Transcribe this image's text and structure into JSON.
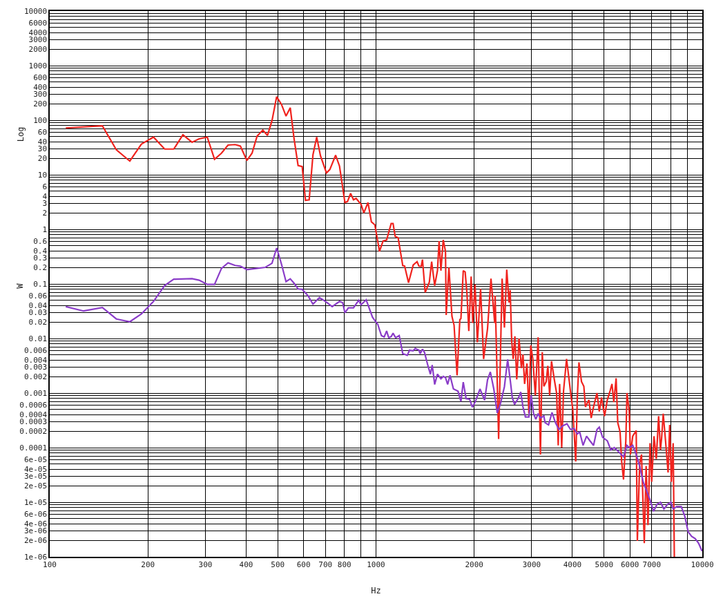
{
  "chart_data": {
    "type": "line",
    "xlabel": "Hz",
    "ylabel": "Log",
    "annotations": [
      "W"
    ],
    "log": "xy",
    "grid": true,
    "xlim": [
      100,
      10000
    ],
    "ylim": [
      1e-06,
      10000
    ],
    "xticks": [
      100,
      200,
      300,
      400,
      500,
      600,
      700,
      800,
      {
        "value": 900,
        "label": null
      },
      1000,
      2000,
      3000,
      4000,
      5000,
      6000,
      7000,
      {
        "value": 8000,
        "label": null
      },
      {
        "value": 9000,
        "label": null
      },
      10000
    ],
    "yticks": [
      1e-06,
      2e-06,
      3e-06,
      4e-06,
      {
        "value": 5e-06,
        "label": null
      },
      6e-06,
      {
        "value": 7e-06,
        "label": null
      },
      {
        "value": 8e-06,
        "label": null
      },
      {
        "value": 9e-06,
        "label": null
      },
      1e-05,
      2e-05,
      3e-05,
      4e-05,
      {
        "value": 5e-05,
        "label": null
      },
      6e-05,
      {
        "value": 7e-05,
        "label": null
      },
      {
        "value": 8e-05,
        "label": null
      },
      {
        "value": 9e-05,
        "label": null
      },
      0.0001,
      0.0002,
      0.0003,
      0.0004,
      {
        "value": 0.0005,
        "label": null
      },
      0.0006,
      {
        "value": 0.0007,
        "label": null
      },
      {
        "value": 0.0008,
        "label": null
      },
      {
        "value": 0.0009,
        "label": null
      },
      0.001,
      0.002,
      0.003,
      0.004,
      {
        "value": 0.005,
        "label": null
      },
      0.006,
      {
        "value": 0.007,
        "label": null
      },
      {
        "value": 0.008,
        "label": null
      },
      {
        "value": 0.009,
        "label": null
      },
      0.01,
      0.02,
      0.03,
      0.04,
      {
        "value": 0.05,
        "label": null
      },
      0.06,
      {
        "value": 0.07,
        "label": null
      },
      {
        "value": 0.08,
        "label": null
      },
      {
        "value": 0.09,
        "label": null
      },
      0.1,
      0.2,
      0.3,
      0.4,
      {
        "value": 0.5,
        "label": null
      },
      0.6,
      {
        "value": 0.7,
        "label": null
      },
      {
        "value": 0.8,
        "label": null
      },
      {
        "value": 0.9,
        "label": null
      },
      1,
      2,
      3,
      4,
      {
        "value": 5,
        "label": null
      },
      6,
      {
        "value": 7,
        "label": null
      },
      {
        "value": 8,
        "label": null
      },
      {
        "value": 9,
        "label": null
      },
      10,
      20,
      30,
      40,
      {
        "value": 50,
        "label": null
      },
      60,
      {
        "value": 70,
        "label": null
      },
      {
        "value": 80,
        "label": null
      },
      {
        "value": 90,
        "label": null
      },
      100,
      200,
      300,
      400,
      {
        "value": 500,
        "label": null
      },
      600,
      {
        "value": 700,
        "label": null
      },
      {
        "value": 800,
        "label": null
      },
      {
        "value": 900,
        "label": null
      },
      1000,
      2000,
      3000,
      4000,
      {
        "value": 5000,
        "label": null
      },
      6000,
      {
        "value": 7000,
        "label": null
      },
      {
        "value": 8000,
        "label": null
      },
      {
        "value": 9000,
        "label": null
      },
      10000
    ],
    "series": [
      {
        "color": "#f0231e",
        "x": [
          112,
          145,
          160,
          176,
          191,
          208,
          225,
          240,
          256,
          273,
          287,
          304,
          320,
          336,
          352,
          370,
          384,
          402,
          417,
          432,
          450,
          465,
          480,
          496,
          513,
          530,
          546,
          561,
          577,
          594,
          608,
          624,
          641,
          658,
          676,
          705,
          722,
          752,
          773,
          803,
          818,
          836,
          853,
          869,
          900,
          918,
          945,
          968,
          992,
          1025,
          1051,
          1078,
          1113,
          1128,
          1145,
          1169,
          1208,
          1224,
          1258,
          1300,
          1336,
          1354,
          1376,
          1388,
          1415,
          1457,
          1481,
          1513,
          1543,
          1561,
          1581,
          1607,
          1633,
          1641,
          1673,
          1709,
          1735,
          1772,
          1807,
          1821,
          1851,
          1876,
          1900,
          1925,
          1957,
          1979,
          2012,
          2045,
          2092,
          2137,
          2197,
          2251,
          2311,
          2318,
          2376,
          2435,
          2475,
          2516,
          2557,
          2578,
          2605,
          2633,
          2665,
          2700,
          2744,
          2790,
          2821,
          2854,
          2902,
          2942,
          2981,
          3024,
          3079,
          3140,
          3191,
          3233,
          3270,
          3324,
          3362,
          3406,
          3451,
          3519,
          3577,
          3618,
          3654,
          3708,
          3757,
          3837,
          3913,
          3957,
          4009,
          4094,
          4140,
          4188,
          4264,
          4335,
          4384,
          4493,
          4566,
          4642,
          4756,
          4834,
          4913,
          5018,
          5117,
          5218,
          5287,
          5356,
          5444,
          5507,
          5597,
          5661,
          5735,
          5830,
          5877,
          5974,
          6022,
          6121,
          6273,
          6324,
          6428,
          6513,
          6641,
          6728,
          6817,
          6918,
          6997,
          7112,
          7229,
          7348,
          7444,
          7504,
          7591,
          7716,
          7856,
          7945,
          8037,
          8142,
          8210
        ],
        "values": [
          72,
          79,
          28.7,
          17.8,
          36.5,
          49,
          29.6,
          29.6,
          54,
          39.4,
          45.5,
          49,
          19.2,
          24.9,
          35,
          35.8,
          33.5,
          18.3,
          24.9,
          51,
          65.6,
          52.6,
          98,
          269,
          196,
          119,
          169,
          45.5,
          14.8,
          14.1,
          3.4,
          3.48,
          23.3,
          49,
          22.2,
          10.8,
          12.5,
          22.8,
          14.4,
          3.1,
          3.25,
          4.55,
          3.48,
          3.69,
          2.87,
          2.01,
          3.1,
          1.37,
          1.21,
          0.394,
          0.61,
          0.64,
          1.28,
          1.28,
          0.74,
          0.7,
          0.216,
          0.212,
          0.105,
          0.222,
          0.256,
          0.212,
          0.21,
          0.28,
          0.07,
          0.108,
          0.256,
          0.0935,
          0.175,
          0.61,
          0.175,
          0.64,
          0.394,
          0.027,
          0.2,
          0.0256,
          0.0175,
          0.0021,
          0.0222,
          0.0233,
          0.175,
          0.166,
          0.067,
          0.0137,
          0.137,
          0.0192,
          0.098,
          0.0085,
          0.081,
          0.0042,
          0.0151,
          0.125,
          0.0192,
          0.0608,
          0.000144,
          0.125,
          0.0158,
          0.183,
          0.0456,
          0.077,
          0.00908,
          0.00422,
          0.011,
          0.00178,
          0.01,
          0.00287,
          0.0051,
          0.00147,
          0.00348,
          0.00042,
          0.0075,
          0.00422,
          0.00091,
          0.0105,
          7.5e-05,
          0.0056,
          0.00133,
          0.00162,
          0.00316,
          0.00091,
          0.00383,
          0.00178,
          0.001,
          0.00011,
          0.00147,
          0.0001,
          0.0011,
          0.00422,
          0.00162,
          0.00091,
          0.00051,
          5.6e-05,
          0.00083,
          0.00365,
          0.00162,
          0.00133,
          0.00056,
          0.00075,
          0.00035,
          0.00056,
          0.001,
          0.00046,
          0.00083,
          0.00038,
          0.00075,
          0.0011,
          0.00147,
          0.00068,
          0.00187,
          0.000287,
          0.000196,
          5.6e-05,
          2.6e-05,
          0.000133,
          0.001,
          0.00046,
          7.5e-05,
          0.000162,
          0.000205,
          1.96e-06,
          5.1e-05,
          7.5e-05,
          1.78e-06,
          4.6e-05,
          3.8e-06,
          0.000121,
          2.37e-05,
          0.000162,
          6.2e-05,
          0.00038,
          9.1e-05,
          0.000147,
          0.00042,
          0.000133,
          3.5e-05,
          0.000261,
          2.37e-05,
          0.000121,
          1e-06
        ]
      },
      {
        "color": "#8a3cc8",
        "x": [
          112,
          127,
          145,
          160,
          176,
          191,
          208,
          225,
          240,
          273,
          287,
          304,
          320,
          336,
          352,
          370,
          384,
          402,
          429,
          458,
          480,
          496,
          513,
          530,
          546,
          561,
          577,
          594,
          619,
          641,
          671,
          705,
          734,
          773,
          790,
          803,
          823,
          853,
          885,
          900,
          933,
          976,
          1012,
          1039,
          1059,
          1078,
          1094,
          1113,
          1128,
          1149,
          1178,
          1208,
          1247,
          1267,
          1300,
          1319,
          1354,
          1366,
          1388,
          1409,
          1444,
          1468,
          1487,
          1513,
          1543,
          1581,
          1607,
          1633,
          1658,
          1686,
          1727,
          1784,
          1821,
          1851,
          1889,
          1936,
          1974,
          2016,
          2083,
          2152,
          2197,
          2241,
          2296,
          2353,
          2412,
          2475,
          2532,
          2582,
          2616,
          2658,
          2711,
          2755,
          2777,
          2821,
          2870,
          2942,
          2990,
          3039,
          3089,
          3140,
          3191,
          3270,
          3297,
          3379,
          3463,
          3548,
          3636,
          3725,
          3848,
          3946,
          4042,
          4140,
          4208,
          4312,
          4419,
          4528,
          4642,
          4756,
          4834,
          4951,
          5117,
          5243,
          5372,
          5551,
          5735,
          5877,
          5974,
          6121,
          6273,
          6428,
          6587,
          6751,
          6918,
          7089,
          7265,
          7444,
          7628,
          7817,
          8011,
          8142,
          8343,
          8620,
          8833,
          9051,
          9275,
          9505,
          9741,
          9983
        ],
        "values": [
          0.0383,
          0.0319,
          0.0369,
          0.0228,
          0.0203,
          0.0282,
          0.0478,
          0.0935,
          0.122,
          0.125,
          0.117,
          0.098,
          0.098,
          0.192,
          0.244,
          0.218,
          0.211,
          0.183,
          0.192,
          0.201,
          0.239,
          0.455,
          0.233,
          0.11,
          0.124,
          0.103,
          0.081,
          0.0794,
          0.0607,
          0.0426,
          0.0562,
          0.0464,
          0.0383,
          0.0478,
          0.0455,
          0.0296,
          0.0365,
          0.0365,
          0.0501,
          0.0414,
          0.0511,
          0.0244,
          0.0183,
          0.0113,
          0.0106,
          0.0137,
          0.0103,
          0.0108,
          0.0125,
          0.0103,
          0.0113,
          0.00526,
          0.00492,
          0.00608,
          0.00596,
          0.00656,
          0.00608,
          0.00526,
          0.00638,
          0.00552,
          0.0031,
          0.00222,
          0.00326,
          0.00144,
          0.00222,
          0.00183,
          0.00202,
          0.00192,
          0.00144,
          0.00211,
          0.00119,
          0.00108,
          0.0007,
          0.00159,
          0.00079,
          0.00077,
          0.00055,
          0.0007,
          0.00119,
          0.00074,
          0.00175,
          0.00244,
          0.00119,
          0.00043,
          0.00067,
          0.00131,
          0.00414,
          0.00162,
          0.00083,
          0.00062,
          0.00075,
          0.00091,
          0.00105,
          0.00056,
          0.000365,
          0.000365,
          0.00091,
          0.00042,
          0.000332,
          0.00042,
          0.00035,
          0.00038,
          0.000287,
          0.000261,
          0.00044,
          0.000287,
          0.000215,
          0.000249,
          0.000274,
          0.000215,
          0.000226,
          0.000178,
          0.000196,
          0.00011,
          0.000162,
          0.000133,
          0.00011,
          0.000215,
          0.000237,
          0.000154,
          0.000133,
          9.1e-05,
          0.0001,
          8.3e-05,
          6.8e-05,
          0.00011,
          0.0001,
          0.00011,
          7.5e-05,
          4.6e-05,
          2.37e-05,
          1.62e-05,
          1.1e-05,
          6.8e-06,
          9.1e-06,
          1e-05,
          7.5e-06,
          9.1e-06,
          1e-05,
          7.5e-06,
          8.3e-06,
          8.3e-06,
          5.6e-06,
          2.87e-06,
          2.37e-06,
          2.16e-06,
          1.78e-06,
          1.27e-06
        ]
      }
    ]
  }
}
